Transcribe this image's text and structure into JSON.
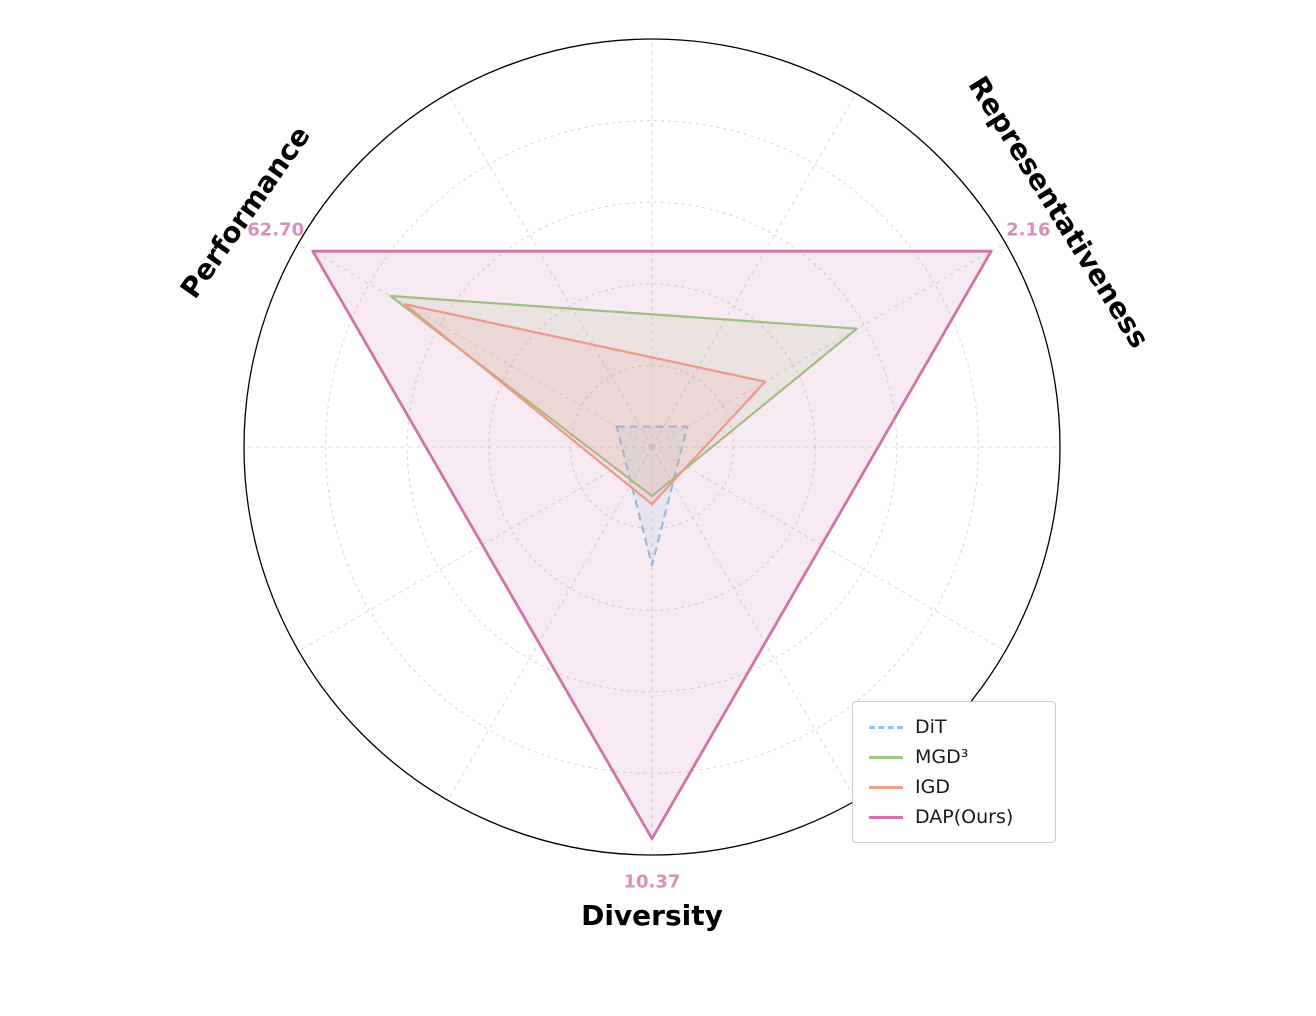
{
  "page": {
    "background": "#ffffff"
  },
  "chart_data": {
    "type": "radar",
    "title": "",
    "categories": [
      "Performance",
      "Representativeness",
      "Diversity"
    ],
    "axes": [
      {
        "key": "performance",
        "label": "Performance",
        "angle_deg": 150,
        "max_value_label": "62.70",
        "name_rotation_deg": -55
      },
      {
        "key": "representativeness",
        "label": "Representativeness",
        "angle_deg": 30,
        "max_value_label": "2.16",
        "name_rotation_deg": 58
      },
      {
        "key": "diversity",
        "label": "Diversity",
        "angle_deg": 270,
        "max_value_label": "10.37",
        "name_rotation_deg": 0
      }
    ],
    "series": [
      {
        "key": "dit",
        "name": "DiT",
        "color": "#8fc6e8",
        "dashed": true,
        "stroke_width": 2.2,
        "values_norm": [
          0.1,
          0.1,
          0.29
        ]
      },
      {
        "key": "mgd3",
        "name": "MGD³",
        "color": "#9dca7c",
        "dashed": false,
        "stroke_width": 2.2,
        "values_norm": [
          0.74,
          0.58,
          0.12
        ]
      },
      {
        "key": "igd",
        "name": "IGD",
        "color": "#f2a084",
        "dashed": false,
        "stroke_width": 2.2,
        "values_norm": [
          0.7,
          0.32,
          0.14
        ]
      },
      {
        "key": "dap",
        "name": "DAP(Ours)",
        "color": "#d173aa",
        "dashed": false,
        "stroke_width": 2.8,
        "values_norm": [
          0.96,
          0.96,
          0.96
        ]
      }
    ],
    "value_label_color": "#d98fba",
    "grid": {
      "rings_norm": [
        0.2,
        0.4,
        0.6,
        0.8
      ],
      "spoke_step_deg": 30,
      "ring_color": "#d6d6d6",
      "spoke_color": "#dadada",
      "outer_circle_color": "#000000",
      "grid_on": true
    },
    "legend": {
      "position": "lower-right"
    }
  }
}
